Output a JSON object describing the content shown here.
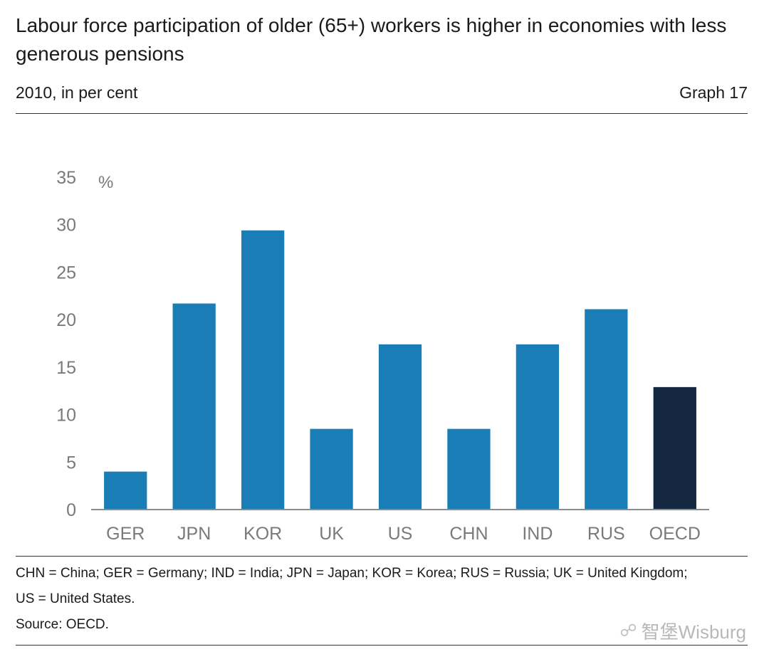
{
  "header": {
    "title": "Labour force participation of older (65+) workers is higher in economies with less generous pensions",
    "subtitle": "2010, in per cent",
    "graph_label": "Graph 17"
  },
  "chart_data": {
    "type": "bar",
    "title": "",
    "ylabel": "%",
    "xlabel": "",
    "categories": [
      "GER",
      "JPN",
      "KOR",
      "UK",
      "US",
      "CHN",
      "IND",
      "RUS",
      "OECD"
    ],
    "values": [
      4,
      21.7,
      29.4,
      8.5,
      17.4,
      8.5,
      17.4,
      21.1,
      12.9
    ],
    "ylim": [
      0,
      35
    ],
    "yticks": [
      0,
      5,
      10,
      15,
      20,
      25,
      30,
      35
    ],
    "grid": false,
    "colors": {
      "default": "#1a7db5",
      "highlight": "#132740"
    },
    "highlight_category": "OECD"
  },
  "footer": {
    "notes_line1": "CHN = China; GER = Germany; IND = India; JPN = Japan; KOR = Korea; RUS = Russia; UK = United Kingdom;",
    "notes_line2": "US = United States.",
    "source": "Source: OECD."
  },
  "watermark": {
    "icon": "wechat-icon",
    "text": "智堡Wisburg"
  }
}
